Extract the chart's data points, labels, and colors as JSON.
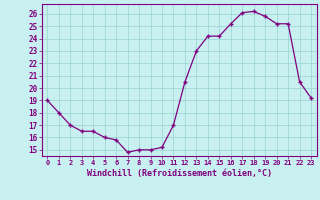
{
  "x": [
    0,
    1,
    2,
    3,
    4,
    5,
    6,
    7,
    8,
    9,
    10,
    11,
    12,
    13,
    14,
    15,
    16,
    17,
    18,
    19,
    20,
    21,
    22,
    23
  ],
  "y": [
    19,
    18,
    17,
    16.5,
    16.5,
    16,
    15.8,
    14.8,
    15,
    15,
    15.2,
    17,
    20.5,
    23,
    24.2,
    24.2,
    25.2,
    26.1,
    26.2,
    25.8,
    25.2,
    25.2,
    20.5,
    19.2
  ],
  "line_color": "#800080",
  "marker_color": "#800080",
  "bg_color": "#c8f0f0",
  "grid_color": "#a0d8d8",
  "xlabel": "Windchill (Refroidissement éolien,°C)",
  "ylim_min": 14.5,
  "ylim_max": 26.8,
  "xlim_min": -0.5,
  "xlim_max": 23.5,
  "yticks": [
    15,
    16,
    17,
    18,
    19,
    20,
    21,
    22,
    23,
    24,
    25,
    26
  ],
  "xticks": [
    0,
    1,
    2,
    3,
    4,
    5,
    6,
    7,
    8,
    9,
    10,
    11,
    12,
    13,
    14,
    15,
    16,
    17,
    18,
    19,
    20,
    21,
    22,
    23
  ]
}
